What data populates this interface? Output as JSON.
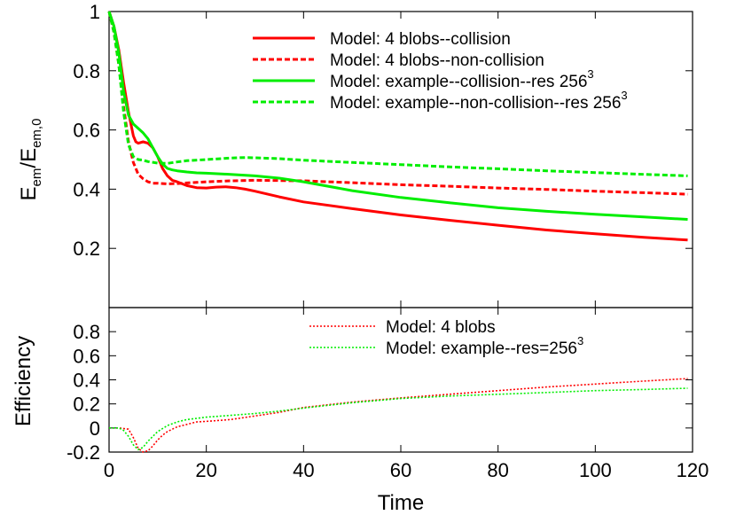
{
  "chart_data": [
    {
      "type": "line",
      "ylabel": "E_em/E_em,0",
      "ylabel_main": "E",
      "ylabel_sub1": "em",
      "ylabel_slash": "/E",
      "ylabel_sub2": "em,0",
      "xlim": [
        0,
        120
      ],
      "ylim": [
        0,
        1
      ],
      "x_ticks": [
        0,
        20,
        40,
        60,
        80,
        100,
        120
      ],
      "y_ticks": [
        0.2,
        0.4,
        0.6,
        0.8,
        1
      ],
      "y_tick_labels": [
        "0.2",
        "0.4",
        "0.6",
        "0.8",
        "1"
      ],
      "legend_position": "top-right",
      "series": [
        {
          "name": "Model: 4 blobs--collision",
          "label_main": "Model: 4 blobs--collision",
          "label_sup": "",
          "color": "#ff0000",
          "dash": "solid",
          "x": [
            0,
            1,
            2,
            3,
            4,
            5,
            5.5,
            6,
            7,
            8,
            9,
            10,
            11,
            12,
            13,
            14,
            16,
            18,
            20,
            22,
            24,
            26,
            28,
            30,
            35,
            40,
            50,
            60,
            70,
            80,
            90,
            100,
            110,
            119
          ],
          "y": [
            1.0,
            0.95,
            0.87,
            0.76,
            0.66,
            0.58,
            0.56,
            0.555,
            0.56,
            0.555,
            0.54,
            0.51,
            0.47,
            0.445,
            0.43,
            0.425,
            0.412,
            0.405,
            0.404,
            0.407,
            0.408,
            0.405,
            0.4,
            0.393,
            0.374,
            0.357,
            0.334,
            0.313,
            0.295,
            0.278,
            0.262,
            0.249,
            0.237,
            0.228
          ]
        },
        {
          "name": "Model: 4 blobs--non-collision",
          "label_main": "Model: 4 blobs--non-collision",
          "label_sup": "",
          "color": "#ff0000",
          "dash": "dashed",
          "x": [
            0,
            1,
            2,
            3,
            4,
            5,
            6,
            7,
            8,
            9,
            10,
            12,
            14,
            16,
            20,
            25,
            30,
            40,
            50,
            60,
            70,
            80,
            90,
            100,
            110,
            119
          ],
          "y": [
            1.0,
            0.93,
            0.82,
            0.68,
            0.56,
            0.49,
            0.45,
            0.435,
            0.425,
            0.42,
            0.42,
            0.418,
            0.419,
            0.421,
            0.425,
            0.428,
            0.43,
            0.428,
            0.422,
            0.415,
            0.41,
            0.404,
            0.399,
            0.393,
            0.388,
            0.383
          ]
        },
        {
          "name": "Model: example--collision--res 256^3",
          "label_main": "Model: example--collision--res 256",
          "label_sup": "3",
          "color": "#00ee00",
          "dash": "solid",
          "x": [
            0,
            1,
            2,
            3,
            4,
            5,
            6,
            7,
            8,
            9,
            10,
            11,
            12,
            13,
            14,
            16,
            18,
            20,
            25,
            30,
            35,
            40,
            50,
            60,
            70,
            80,
            90,
            100,
            110,
            119
          ],
          "y": [
            1.0,
            0.95,
            0.86,
            0.73,
            0.65,
            0.62,
            0.605,
            0.59,
            0.57,
            0.54,
            0.51,
            0.485,
            0.47,
            0.465,
            0.462,
            0.458,
            0.455,
            0.454,
            0.45,
            0.445,
            0.437,
            0.425,
            0.395,
            0.372,
            0.354,
            0.337,
            0.325,
            0.315,
            0.306,
            0.298
          ]
        },
        {
          "name": "Model: example--non-collision--res 256^3",
          "label_main": "Model: example--non-collision--res 256",
          "label_sup": "3",
          "color": "#00ee00",
          "dash": "dashed",
          "x": [
            0,
            1,
            2,
            3,
            4,
            5,
            6,
            7,
            8,
            10,
            12,
            14,
            16,
            20,
            25,
            28,
            30,
            35,
            40,
            50,
            60,
            70,
            80,
            90,
            100,
            110,
            119
          ],
          "y": [
            1.0,
            0.93,
            0.82,
            0.66,
            0.55,
            0.51,
            0.5,
            0.498,
            0.493,
            0.488,
            0.487,
            0.492,
            0.496,
            0.5,
            0.505,
            0.507,
            0.506,
            0.503,
            0.498,
            0.49,
            0.483,
            0.475,
            0.469,
            0.462,
            0.456,
            0.45,
            0.445
          ]
        }
      ]
    },
    {
      "type": "line",
      "ylabel": "Efficiency",
      "xlabel": "Time",
      "xlim": [
        0,
        120
      ],
      "ylim": [
        -0.2,
        1
      ],
      "x_ticks": [
        0,
        20,
        40,
        60,
        80,
        100,
        120
      ],
      "x_tick_labels": [
        "0",
        "20",
        "40",
        "60",
        "80",
        "100",
        "120"
      ],
      "y_ticks": [
        -0.2,
        0,
        0.2,
        0.4,
        0.6,
        0.8
      ],
      "y_tick_labels": [
        "-0.2",
        "0",
        "0.2",
        "0.4",
        "0.6",
        "0.8"
      ],
      "legend_position": "top-center",
      "series": [
        {
          "name": "Model: 4 blobs",
          "label_main": "Model: 4 blobs",
          "label_sup": "",
          "color": "#ff0000",
          "dash": "dotted",
          "x": [
            0,
            2,
            4,
            5,
            6,
            7,
            8,
            9,
            10,
            11,
            12,
            14,
            16,
            18,
            20,
            25,
            30,
            35,
            40,
            50,
            60,
            70,
            80,
            90,
            100,
            110,
            119
          ],
          "y": [
            0,
            0,
            -0.01,
            -0.08,
            -0.17,
            -0.2,
            -0.19,
            -0.15,
            -0.1,
            -0.06,
            -0.03,
            0.01,
            0.03,
            0.05,
            0.055,
            0.07,
            0.1,
            0.13,
            0.17,
            0.215,
            0.25,
            0.28,
            0.31,
            0.34,
            0.365,
            0.39,
            0.41
          ]
        },
        {
          "name": "Model: example--res=256^3",
          "label_main": "Model: example--res=256",
          "label_sup": "3",
          "color": "#00ee00",
          "dash": "dotted",
          "x": [
            0,
            2,
            3,
            4,
            5,
            6,
            7,
            8,
            9,
            10,
            12,
            14,
            16,
            18,
            20,
            25,
            30,
            35,
            40,
            50,
            60,
            70,
            80,
            90,
            100,
            110,
            119
          ],
          "y": [
            0,
            0,
            -0.02,
            -0.07,
            -0.14,
            -0.18,
            -0.16,
            -0.11,
            -0.07,
            -0.03,
            0.02,
            0.05,
            0.07,
            0.08,
            0.09,
            0.105,
            0.12,
            0.14,
            0.165,
            0.21,
            0.245,
            0.265,
            0.28,
            0.295,
            0.31,
            0.32,
            0.33
          ]
        }
      ]
    }
  ]
}
